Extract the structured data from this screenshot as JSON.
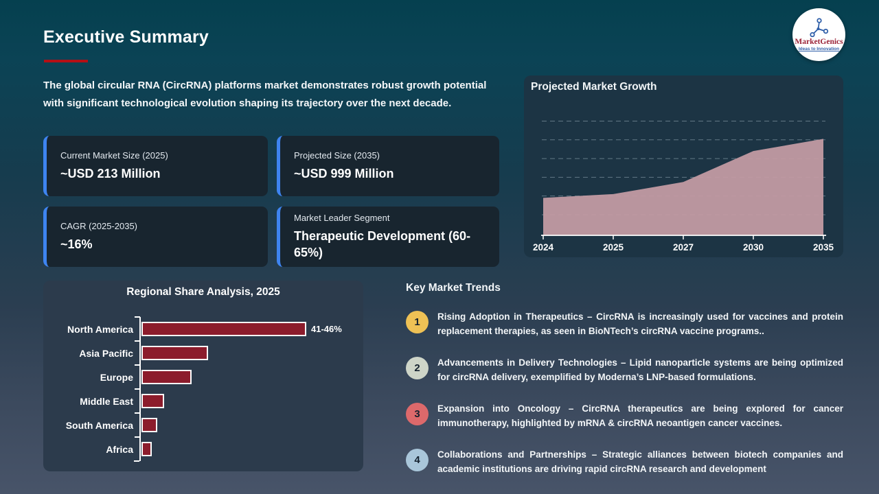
{
  "slide": {
    "title": "Executive Summary",
    "intro": "The global circular RNA (CircRNA) platforms market demonstrates robust growth potential with significant technological evolution shaping its trajectory over the next decade."
  },
  "logo": {
    "brand": "MarketGenics",
    "tagline": "Ideas to Innovation"
  },
  "stat_cards": [
    {
      "label": "Current Market Size (2025)",
      "value": "~USD 213 Million"
    },
    {
      "label": "Projected Size (2035)",
      "value": "~USD 999 Million"
    },
    {
      "label": "CAGR (2025-2035)",
      "value": "~16%"
    },
    {
      "label": "Market Leader Segment",
      "value": "Therapeutic Development (60-65%)"
    }
  ],
  "trends": {
    "title": "Key Market Trends",
    "items": [
      {
        "number": "1",
        "badge_color": "#eec155",
        "text": "Rising Adoption in Therapeutics – CircRNA is increasingly used for vaccines and protein replacement therapies, as seen in BioNTech’s circRNA vaccine programs.."
      },
      {
        "number": "2",
        "badge_color": "#ced5c8",
        "text": "Advancements in Delivery Technologies – Lipid nanoparticle systems are being optimized for circRNA delivery, exemplified by Moderna’s LNP-based formulations."
      },
      {
        "number": "3",
        "badge_color": "#dd696b",
        "text": "Expansion into Oncology – CircRNA therapeutics are being explored for cancer immunotherapy, highlighted by mRNA & circRNA neoantigen cancer vaccines."
      },
      {
        "number": "4",
        "badge_color": "#a9c6da",
        "text": "Collaborations and Partnerships – Strategic alliances between biotech companies and academic institutions are driving rapid circRNA research and development"
      }
    ]
  },
  "chart_data": [
    {
      "type": "area",
      "title": "Projected Market Growth",
      "x_labels": [
        "2024",
        "2025",
        "2027",
        "2030",
        "2035"
      ],
      "values": [
        2.0,
        2.2,
        2.85,
        4.5,
        5.15
      ],
      "ylim": [
        0,
        6.3
      ],
      "y_axis_labels_shown": false,
      "gridline_values": [
        1.1,
        2.1,
        3.1,
        4.1,
        5.1,
        6.1
      ],
      "grid_style": "dashed horizontal",
      "legend": "none",
      "fill_color": "#c49ba4"
    },
    {
      "type": "bar",
      "orientation": "horizontal",
      "title": "Regional Share Analysis, 2025",
      "categories": [
        "North America",
        "Asia Pacific",
        "Europe",
        "Middle East",
        "South America",
        "Africa"
      ],
      "values": [
        43.5,
        17.5,
        13.2,
        6.0,
        4.2,
        2.7
      ],
      "data_labels": [
        "41-46%",
        "",
        "",
        "",
        "",
        ""
      ],
      "xlim": [
        0,
        50
      ],
      "legend": "none",
      "bar_color": "#8c1c2c",
      "bar_border_color": "#ffffff"
    }
  ],
  "colors": {
    "title_underline": "#b40f15",
    "card_accent": "#3e84f0",
    "card_bg": "#18252f",
    "growth_panel_bg": "#1c3444",
    "bar_panel_bg": "#2c3b4c",
    "background_top": "#05404f",
    "background_bottom": "#485469"
  }
}
